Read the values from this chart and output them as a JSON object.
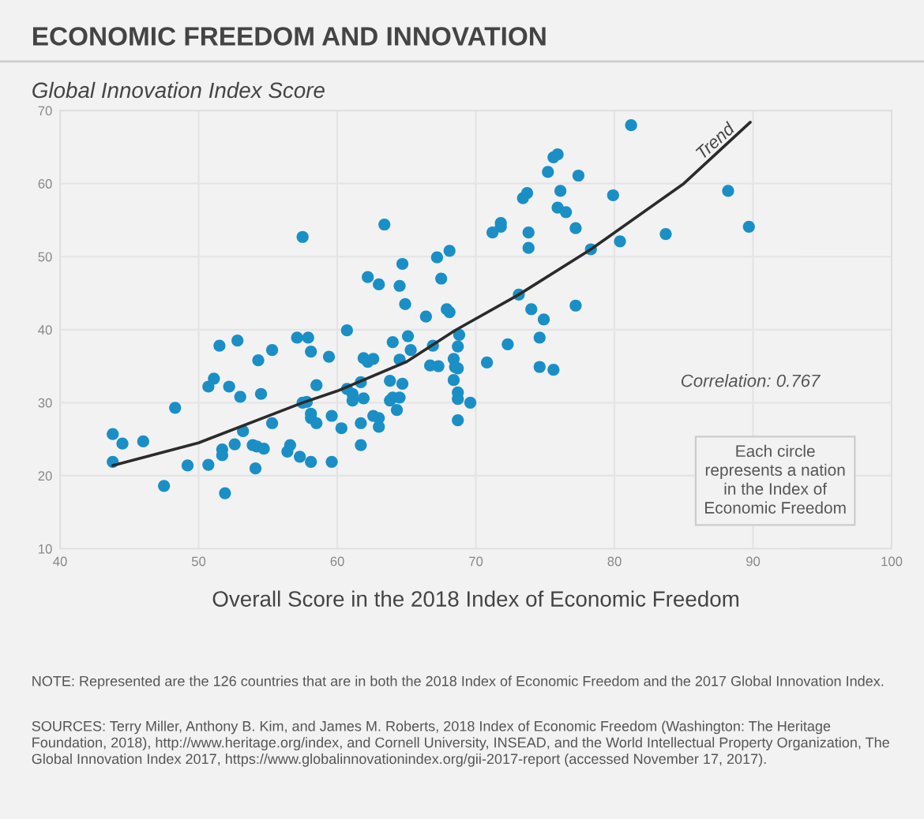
{
  "chart_data": {
    "type": "scatter",
    "title": "ECONOMIC FREEDOM AND INNOVATION",
    "ylabel": "Global Innovation Index Score",
    "xlabel": "Overall Score in the 2018 Index of Economic Freedom",
    "xlim": [
      40,
      100
    ],
    "xticks": [
      40,
      50,
      60,
      70,
      80,
      90,
      100
    ],
    "ylim": [
      10,
      70
    ],
    "yticks": [
      10,
      20,
      30,
      40,
      50,
      60,
      70
    ],
    "grid": true,
    "marker": "circle",
    "series": [
      {
        "color": "#1a8fc6",
        "x": [
          43.8,
          44.5,
          43.8,
          46.0,
          47.5,
          48.3,
          49.2,
          50.7,
          51.1,
          51.5,
          50.7,
          51.7,
          51.7,
          51.9,
          52.2,
          52.6,
          52.8,
          53.0,
          53.2,
          53.9,
          54.1,
          54.2,
          54.3,
          54.5,
          54.7,
          55.3,
          55.3,
          56.4,
          56.6,
          57.1,
          57.3,
          57.5,
          57.5,
          57.8,
          57.9,
          58.1,
          58.1,
          58.1,
          58.1,
          58.5,
          58.5,
          59.4,
          59.6,
          59.6,
          60.3,
          60.7,
          60.7,
          61.1,
          61.1,
          61.7,
          61.7,
          61.7,
          61.9,
          61.9,
          62.2,
          62.2,
          62.6,
          62.6,
          63.0,
          63.0,
          63.0,
          63.4,
          63.8,
          63.8,
          64.0,
          64.0,
          64.3,
          64.5,
          64.5,
          64.5,
          64.7,
          64.7,
          64.9,
          65.1,
          65.3,
          66.4,
          66.7,
          66.9,
          67.2,
          67.3,
          67.5,
          67.9,
          68.1,
          68.1,
          68.4,
          68.4,
          68.5,
          68.7,
          68.8,
          68.7,
          68.7,
          68.7,
          68.7,
          69.6,
          70.8,
          72.3,
          71.2,
          71.8,
          71.8,
          73.1,
          73.4,
          73.7,
          73.8,
          73.8,
          74.0,
          74.6,
          74.9,
          74.6,
          75.2,
          75.6,
          75.9,
          75.6,
          75.9,
          76.1,
          76.5,
          77.2,
          77.2,
          77.4,
          78.3,
          79.9,
          80.4,
          81.2,
          83.7,
          88.2,
          89.7
        ],
        "values": [
          25.7,
          24.4,
          21.9,
          24.7,
          18.6,
          29.3,
          21.4,
          32.2,
          33.3,
          37.8,
          21.5,
          23.6,
          22.8,
          17.6,
          32.2,
          24.3,
          38.5,
          30.8,
          26.1,
          24.2,
          21.0,
          24.0,
          35.8,
          31.2,
          23.7,
          37.2,
          27.2,
          23.3,
          24.2,
          38.9,
          22.6,
          52.7,
          30.0,
          30.1,
          38.9,
          37.0,
          28.5,
          27.9,
          21.9,
          27.2,
          32.4,
          36.3,
          28.2,
          21.9,
          26.5,
          39.9,
          31.9,
          30.3,
          31.2,
          32.8,
          27.2,
          24.2,
          30.6,
          36.1,
          47.2,
          35.6,
          36.0,
          28.2,
          27.9,
          26.7,
          46.2,
          54.4,
          33.0,
          30.3,
          38.3,
          30.7,
          29.0,
          30.7,
          35.9,
          46.0,
          49.0,
          32.6,
          43.5,
          39.1,
          37.2,
          41.8,
          35.1,
          37.8,
          49.9,
          35.0,
          47.0,
          42.8,
          50.8,
          42.4,
          36.0,
          33.1,
          34.9,
          37.7,
          39.3,
          34.7,
          31.4,
          30.5,
          27.6,
          30.0,
          35.5,
          38.0,
          53.3,
          54.6,
          54.1,
          44.8,
          58.0,
          58.7,
          53.3,
          51.2,
          42.8,
          38.9,
          41.4,
          34.9,
          61.6,
          63.6,
          64.0,
          34.5,
          56.7,
          59.0,
          56.1,
          53.9,
          43.3,
          61.1,
          51.0,
          58.4,
          52.1,
          68.0,
          53.1,
          59.0,
          54.1
        ]
      },
      {
        "type": "line",
        "name": "Trend",
        "color": "#2b2b2b",
        "marker": "none",
        "line_style": "solid",
        "x": [
          43.8,
          50,
          57.5,
          60,
          65,
          68.5,
          73.1,
          78.3,
          85,
          89.8
        ],
        "values": [
          21.4,
          24.5,
          30.0,
          31.6,
          35.6,
          39.9,
          44.8,
          51.0,
          60.0,
          68.4
        ]
      }
    ],
    "annotations": [
      "Correlation: 0.767",
      "Each circle\nrepresents a nation\nin the Index of\nEconomic Freedom",
      "NOTE: Represented are the 126 countries that are in both the 2018 Index of Economic Freedom and the 2017 Global Innovation Index.",
      "SOURCES: Terry Miller, Anthony B. Kim, and James M. Roberts, 2018 Index of Economic Freedom (Washington: The Heritage Foundation, 2018), http://www.heritage.org/index, and Cornell University, INSEAD, and the World Intellectual Property Organization, The Global Innovation Index 2017, https://www.globalinnovationindex.org/gii-2017-report (accessed November 17, 2017)."
    ]
  }
}
